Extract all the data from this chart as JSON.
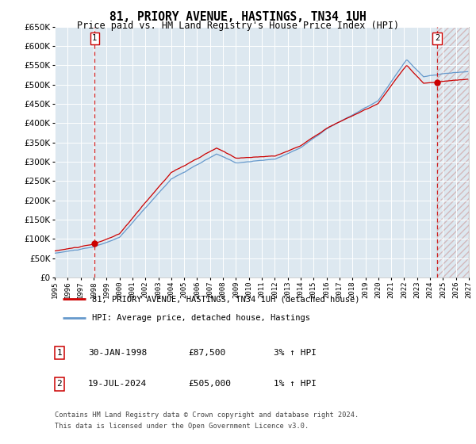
{
  "title": "81, PRIORY AVENUE, HASTINGS, TN34 1UH",
  "subtitle": "Price paid vs. HM Land Registry's House Price Index (HPI)",
  "legend_line1": "81, PRIORY AVENUE, HASTINGS, TN34 1UH (detached house)",
  "legend_line2": "HPI: Average price, detached house, Hastings",
  "footnote1": "Contains HM Land Registry data © Crown copyright and database right 2024.",
  "footnote2": "This data is licensed under the Open Government Licence v3.0.",
  "table": [
    {
      "num": "1",
      "date": "30-JAN-1998",
      "price": "£87,500",
      "hpi": "3% ↑ HPI"
    },
    {
      "num": "2",
      "date": "19-JUL-2024",
      "price": "£505,000",
      "hpi": "1% ↑ HPI"
    }
  ],
  "purchases": [
    {
      "year": 1998.08,
      "price": 87500,
      "label": "1"
    },
    {
      "year": 2024.55,
      "price": 505000,
      "label": "2"
    }
  ],
  "ylim": [
    0,
    650000
  ],
  "xlim": [
    1995,
    2027
  ],
  "yticks": [
    0,
    50000,
    100000,
    150000,
    200000,
    250000,
    300000,
    350000,
    400000,
    450000,
    500000,
    550000,
    600000,
    650000
  ],
  "xticks": [
    1995,
    1996,
    1997,
    1998,
    1999,
    2000,
    2001,
    2002,
    2003,
    2004,
    2005,
    2006,
    2007,
    2008,
    2009,
    2010,
    2011,
    2012,
    2013,
    2014,
    2015,
    2016,
    2017,
    2018,
    2019,
    2020,
    2021,
    2022,
    2023,
    2024,
    2025,
    2026,
    2027
  ],
  "property_color": "#cc0000",
  "hpi_color": "#6699cc",
  "vline_color": "#cc0000",
  "bg_color": "#dde8f0",
  "grid_color": "#ffffff"
}
